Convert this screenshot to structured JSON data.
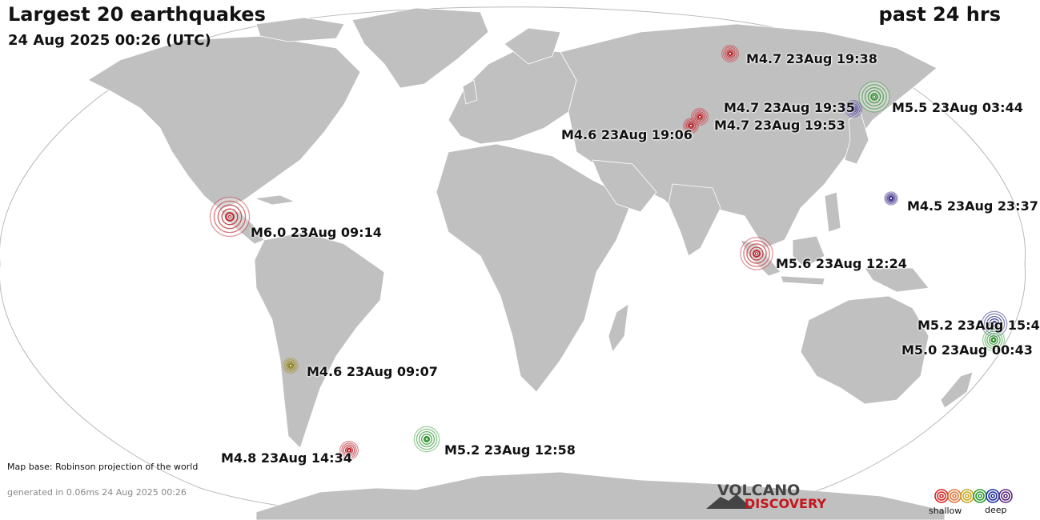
{
  "header": {
    "title": "Largest 20 earthquakes",
    "datetime": "24 Aug 2025 00:26 (UTC)",
    "period": "past 24 hrs"
  },
  "footer": {
    "map_base": "Map base: Robinson projection of the world",
    "generated": "generated in 0.06ms 24 Aug 2025 00:26"
  },
  "brand": {
    "line1": "VOLCANO",
    "line2": "DISCOVERY"
  },
  "legend": {
    "shallow_label": "shallow",
    "deep_label": "deep",
    "depth_colors": [
      "#d42020",
      "#e0743a",
      "#c8a51a",
      "#2a9a2a",
      "#1c2f9e",
      "#5a2a7a"
    ]
  },
  "colors": {
    "land": "#c0c0c0",
    "ocean": "#ffffff",
    "border": "#ffffff",
    "outline": "#b8b8b8"
  },
  "quakes": [
    {
      "label": "M4.7 23Aug 19:38",
      "magnitude": 4.7,
      "color": "#b81c24"
    },
    {
      "label": "M4.7 23Aug 19:35",
      "magnitude": 4.7,
      "color": "#3b2e88"
    },
    {
      "label": "M5.5 23Aug 03:44",
      "magnitude": 5.5,
      "color": "#3a9a3a"
    },
    {
      "label": "M4.7 23Aug 19:53",
      "magnitude": 4.7,
      "color": "#b81c24"
    },
    {
      "label": "M4.6 23Aug 19:06",
      "magnitude": 4.6,
      "color": "#b81c24"
    },
    {
      "label": "M4.5 23Aug 23:37",
      "magnitude": 4.5,
      "color": "#3b2e88"
    },
    {
      "label": "M6.0 23Aug 09:14",
      "magnitude": 6.0,
      "color": "#c0272d"
    },
    {
      "label": "M5.6 23Aug 12:24",
      "magnitude": 5.6,
      "color": "#c0272d"
    },
    {
      "label": "M5.2 23Aug 15:4",
      "magnitude": 5.2,
      "color": "#2a2e7a"
    },
    {
      "label": "M5.0 23Aug 00:43",
      "magnitude": 5.0,
      "color": "#3a9a3a"
    },
    {
      "label": "M4.6 23Aug 09:07",
      "magnitude": 4.6,
      "color": "#8a7a10"
    },
    {
      "label": "M4.8 23Aug 14:34",
      "magnitude": 4.8,
      "color": "#b81c24"
    },
    {
      "label": "M5.2 23Aug 12:58",
      "magnitude": 5.2,
      "color": "#3a9a3a"
    }
  ]
}
